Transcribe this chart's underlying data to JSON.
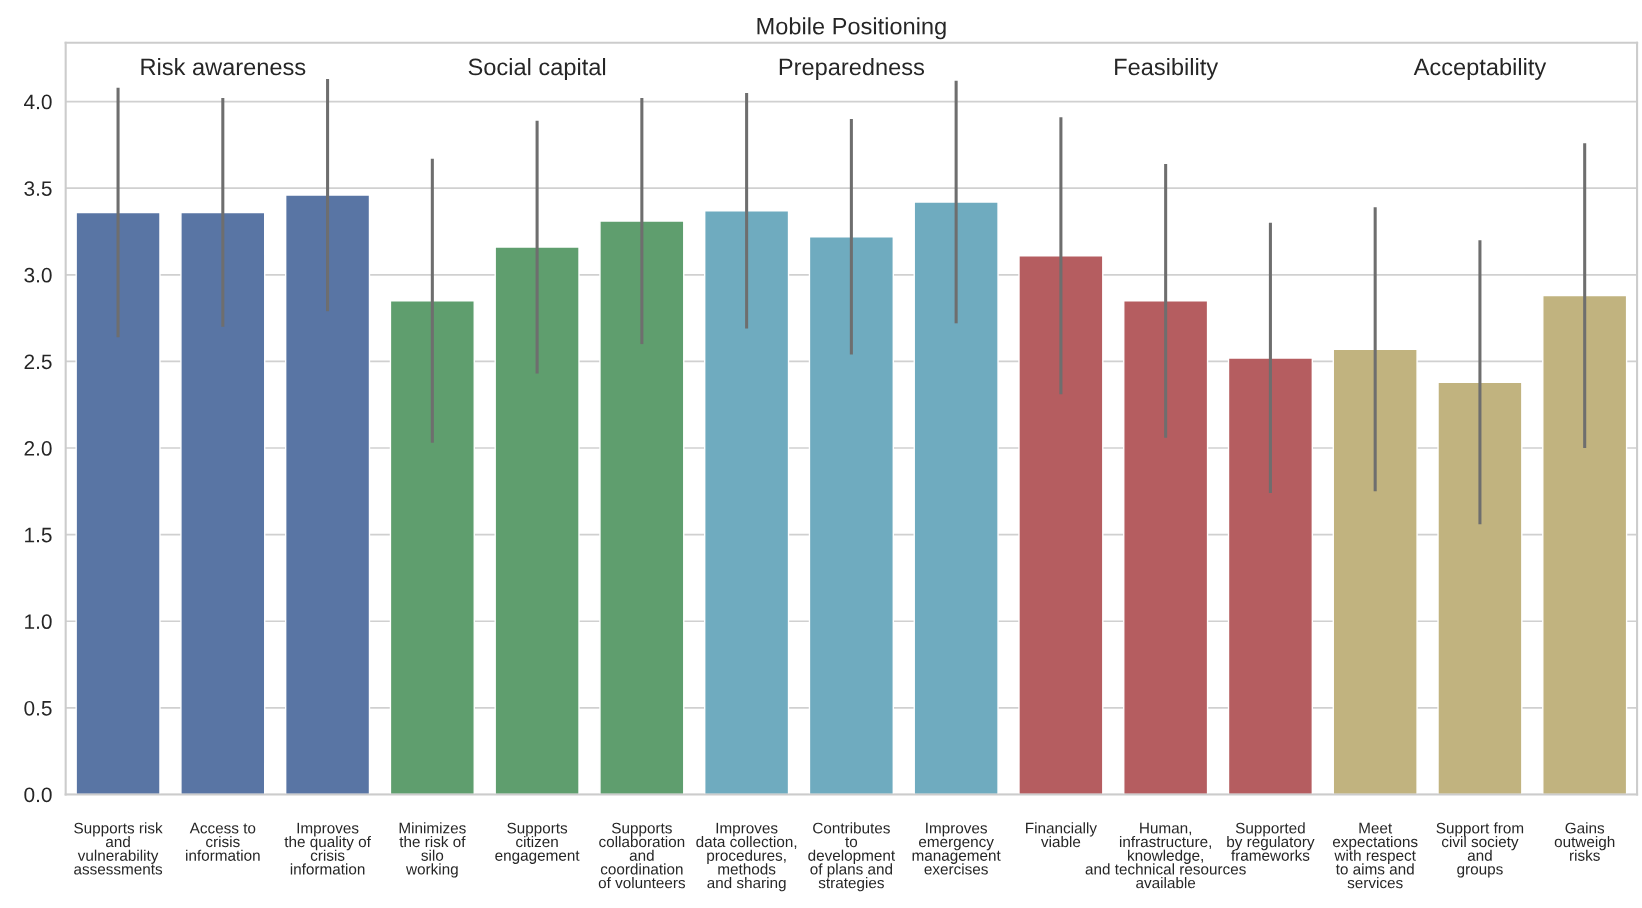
{
  "chart_data": {
    "type": "bar",
    "title": "Mobile Positioning",
    "categories": [
      "Supports risk\nand\nvulnerability\nassessments",
      "Access to\ncrisis\ninformation",
      "Improves\nthe quality of\ncrisis\ninformation",
      "Minimizes\nthe risk of\nsilo\nworking",
      "Supports\ncitizen\nengagement",
      "Supports\ncollaboration\nand\ncoordination\nof volunteers",
      "Improves\ndata collection,\nprocedures,\nmethods\nand sharing",
      "Contributes\nto\ndevelopment\nof plans and\nstrategies",
      "Improves\nemergency\nmanagement\nexercises",
      "Financially\nviable",
      "Human,\ninfrastructure,\nknowledge,\nand technical resources\navailable",
      "Supported\nby regulatory\nframeworks",
      "Meet\nexpectations\nwith respect\nto aims and\nservices",
      "Support from\ncivil society\nand\ngroups",
      "Gains\noutweigh\nrisks"
    ],
    "values": [
      3.36,
      3.36,
      3.46,
      2.85,
      3.16,
      3.31,
      3.37,
      3.22,
      3.42,
      3.11,
      2.85,
      2.52,
      2.57,
      2.38,
      2.88
    ],
    "errors": [
      0.72,
      0.66,
      0.67,
      0.82,
      0.73,
      0.71,
      0.68,
      0.68,
      0.7,
      0.8,
      0.79,
      0.78,
      0.82,
      0.82,
      0.88
    ],
    "colors": [
      "#5975a4",
      "#5975a4",
      "#5975a4",
      "#5f9e6e",
      "#5f9e6e",
      "#5f9e6e",
      "#6fabbf",
      "#6fabbf",
      "#6fabbf",
      "#b55d60",
      "#b55d60",
      "#b55d60",
      "#c1b37f",
      "#c1b37f",
      "#c1b37f"
    ],
    "ylim": [
      0,
      4.34
    ],
    "yticks": [
      {
        "value": 0,
        "label": "0.0"
      },
      0.5,
      {
        "value": 1,
        "label": "1.0"
      },
      1.5,
      {
        "value": 2,
        "label": "2.0"
      },
      2.5,
      {
        "value": 3,
        "label": "3.0"
      },
      3.5,
      {
        "value": 4,
        "label": "4.0"
      }
    ],
    "annotations": [
      "Risk awareness",
      "Social capital",
      "Preparedness",
      "Feasibility",
      "Acceptability"
    ],
    "grid": "y",
    "legend": false
  }
}
